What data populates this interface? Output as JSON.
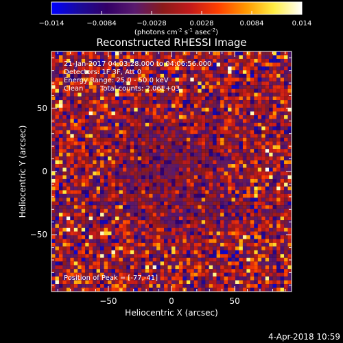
{
  "chart_data": {
    "type": "heatmap",
    "title": "Reconstructed RHESSI Image",
    "xlabel": "Heliocentric X (arcsec)",
    "ylabel": "Heliocentric Y (arcsec)",
    "xlim": [
      -95,
      95
    ],
    "ylim": [
      -95,
      95
    ],
    "x_ticks": [
      -50,
      0,
      50
    ],
    "y_ticks": [
      50,
      0,
      -50
    ],
    "colorbar": {
      "min": -0.014,
      "max": 0.014,
      "tick_labels": [
        "-0.014",
        "-0.0084",
        "-0.0028",
        "0.0028",
        "0.0084",
        "0.014"
      ],
      "unit_prefix": "(photons cm",
      "unit_exp1": "-2",
      "unit_mid1": " s",
      "unit_exp2": "-1",
      "unit_mid2": " asec",
      "unit_exp3": "-2",
      "unit_suffix": ")",
      "stops": [
        "#0000ff",
        "#1a0a9b",
        "#330066",
        "#5a1a6e",
        "#8a1a1a",
        "#c41a1a",
        "#ff4000",
        "#ff9900",
        "#ffee44",
        "#ffffff"
      ]
    },
    "grid": {
      "columns": 64,
      "rows": 64
    },
    "annotations": {
      "line1": "21-Jan-2017 04:03:28.000 to 04:06:56.000",
      "line2": "Detectors: 1F 3F, Att 0",
      "line3": "Energy Range: 25.0 - 50.0 keV",
      "line4_a": "Clean",
      "line4_b": "Total counts: 2.06E+03",
      "peak": "Position of Peak = [-77,-41]"
    },
    "footer_date": "4-Apr-2018 10:59"
  }
}
